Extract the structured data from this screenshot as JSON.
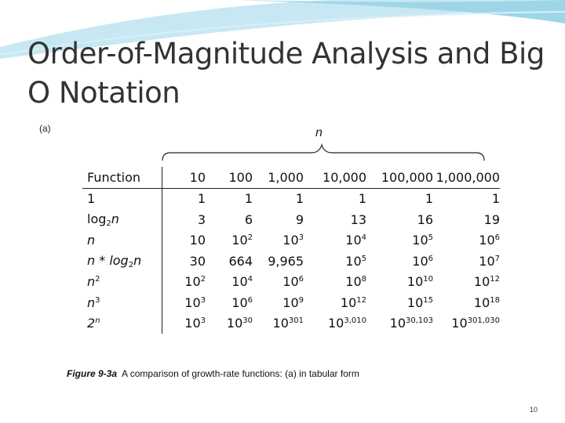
{
  "title": "Order-of-Magnitude Analysis and Big O Notation",
  "figure": {
    "label": "(a)",
    "brace_label": "n",
    "table": {
      "header": [
        "Function",
        "10",
        "100",
        "1,000",
        "10,000",
        "100,000",
        "1,000,000"
      ],
      "rows": [
        [
          "1",
          "1",
          "1",
          "1",
          "1",
          "1",
          "1"
        ],
        [
          {
            "base": "log",
            "sub": "2",
            "tail": "n"
          },
          "3",
          "6",
          "9",
          "13",
          "16",
          "19"
        ],
        [
          "n",
          "10",
          {
            "base": "10",
            "sup": "2"
          },
          {
            "base": "10",
            "sup": "3"
          },
          {
            "base": "10",
            "sup": "4"
          },
          {
            "base": "10",
            "sup": "5"
          },
          {
            "base": "10",
            "sup": "6"
          }
        ],
        [
          {
            "base": "n * log",
            "sub": "2",
            "tail": "n"
          },
          "30",
          "664",
          "9,965",
          {
            "base": "10",
            "sup": "5"
          },
          {
            "base": "10",
            "sup": "6"
          },
          {
            "base": "10",
            "sup": "7"
          }
        ],
        [
          {
            "base": "n",
            "sup": "2"
          },
          {
            "base": "10",
            "sup": "2"
          },
          {
            "base": "10",
            "sup": "4"
          },
          {
            "base": "10",
            "sup": "6"
          },
          {
            "base": "10",
            "sup": "8"
          },
          {
            "base": "10",
            "sup": "10"
          },
          {
            "base": "10",
            "sup": "12"
          }
        ],
        [
          {
            "base": "n",
            "sup": "3"
          },
          {
            "base": "10",
            "sup": "3"
          },
          {
            "base": "10",
            "sup": "6"
          },
          {
            "base": "10",
            "sup": "9"
          },
          {
            "base": "10",
            "sup": "12"
          },
          {
            "base": "10",
            "sup": "15"
          },
          {
            "base": "10",
            "sup": "18"
          }
        ],
        [
          {
            "base": "2",
            "sup": "n"
          },
          {
            "base": "10",
            "sup": "3"
          },
          {
            "base": "10",
            "sup": "30"
          },
          {
            "base": "10",
            "sup": "301"
          },
          {
            "base": "10",
            "sup": "3,010"
          },
          {
            "base": "10",
            "sup": "30,103"
          },
          {
            "base": "10",
            "sup": "301,030"
          }
        ]
      ]
    }
  },
  "caption": {
    "label": "Figure 9-3a",
    "text": "A comparison of growth-rate functions: (a) in tabular form"
  },
  "page_number": "10"
}
